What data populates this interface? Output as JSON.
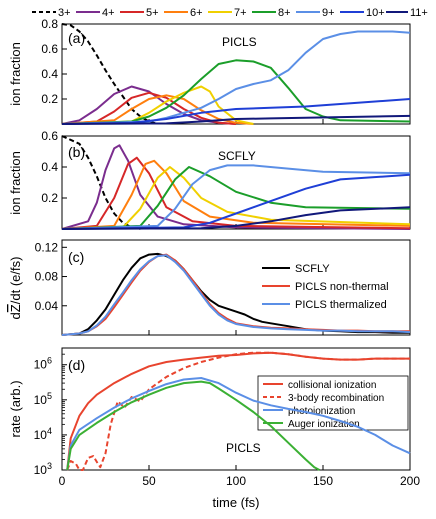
{
  "chart_data": [
    {
      "panel": "(a)",
      "type": "line",
      "annotation": "PICLS",
      "ylabel": "ion fraction",
      "xlim": [
        0,
        200
      ],
      "ylim": [
        0,
        0.8
      ],
      "yticks": [
        "0.2",
        "0.4",
        "0.6",
        "0.8"
      ],
      "series": [
        {
          "name": "3+",
          "color": "#000000",
          "dashed": true,
          "x": [
            0,
            5,
            10,
            15,
            20,
            25,
            30,
            35,
            40,
            45,
            50,
            55
          ],
          "y": [
            0.8,
            0.79,
            0.74,
            0.66,
            0.55,
            0.43,
            0.32,
            0.22,
            0.12,
            0.06,
            0.02,
            0.0
          ]
        },
        {
          "name": "4+",
          "color": "#7b2d8e",
          "x": [
            0,
            10,
            20,
            30,
            40,
            50,
            60,
            70,
            80,
            90,
            100
          ],
          "y": [
            0,
            0.03,
            0.12,
            0.24,
            0.3,
            0.26,
            0.16,
            0.08,
            0.03,
            0.01,
            0
          ]
        },
        {
          "name": "5+",
          "color": "#d62728",
          "x": [
            0,
            20,
            30,
            40,
            50,
            60,
            70,
            80,
            90,
            100
          ],
          "y": [
            0,
            0.02,
            0.1,
            0.21,
            0.25,
            0.21,
            0.12,
            0.05,
            0.01,
            0
          ]
        },
        {
          "name": "6+",
          "color": "#ff7f0e",
          "x": [
            0,
            30,
            40,
            50,
            60,
            70,
            80,
            90,
            100,
            110
          ],
          "y": [
            0,
            0.03,
            0.12,
            0.2,
            0.23,
            0.2,
            0.11,
            0.04,
            0.01,
            0
          ]
        },
        {
          "name": "7+",
          "color": "#f0d000",
          "x": [
            0,
            40,
            50,
            60,
            70,
            80,
            85,
            90,
            100,
            110
          ],
          "y": [
            0,
            0.02,
            0.09,
            0.18,
            0.25,
            0.3,
            0.26,
            0.14,
            0.03,
            0
          ]
        },
        {
          "name": "8+",
          "color": "#1b9e2a",
          "x": [
            0,
            40,
            50,
            60,
            70,
            80,
            90,
            100,
            110,
            120,
            130,
            140,
            150,
            160,
            200
          ],
          "y": [
            0,
            0.02,
            0.06,
            0.13,
            0.23,
            0.36,
            0.48,
            0.51,
            0.5,
            0.45,
            0.29,
            0.12,
            0.06,
            0.03,
            0.02
          ]
        },
        {
          "name": "9+",
          "color": "#5b8fe6",
          "x": [
            0,
            50,
            60,
            70,
            80,
            90,
            100,
            110,
            120,
            130,
            140,
            150,
            160,
            170,
            180,
            190,
            200
          ],
          "y": [
            0,
            0.02,
            0.05,
            0.09,
            0.13,
            0.2,
            0.28,
            0.32,
            0.35,
            0.43,
            0.57,
            0.68,
            0.72,
            0.74,
            0.74,
            0.74,
            0.73
          ]
        },
        {
          "name": "10+",
          "color": "#1f3fd6",
          "x": [
            0,
            40,
            60,
            80,
            100,
            120,
            140,
            160,
            180,
            200
          ],
          "y": [
            0,
            0.01,
            0.04,
            0.09,
            0.12,
            0.13,
            0.14,
            0.16,
            0.18,
            0.2
          ]
        },
        {
          "name": "11+",
          "color": "#11187a",
          "x": [
            0,
            60,
            80,
            100,
            120,
            140,
            160,
            180,
            200
          ],
          "y": [
            0,
            0.005,
            0.02,
            0.04,
            0.045,
            0.05,
            0.055,
            0.06,
            0.065
          ]
        }
      ]
    },
    {
      "panel": "(b)",
      "type": "line",
      "annotation": "SCFLY",
      "ylabel": "ion fraction",
      "xlim": [
        0,
        200
      ],
      "ylim": [
        0,
        0.6
      ],
      "yticks": [
        "0.2",
        "0.4",
        "0.6"
      ],
      "series": [
        {
          "name": "3+",
          "color": "#000000",
          "dashed": true,
          "x": [
            0,
            10,
            15,
            20,
            25,
            30,
            35,
            40,
            45
          ],
          "y": [
            0.6,
            0.55,
            0.46,
            0.34,
            0.2,
            0.1,
            0.04,
            0.01,
            0
          ]
        },
        {
          "name": "4+",
          "color": "#7b2d8e",
          "x": [
            0,
            15,
            20,
            25,
            30,
            33,
            38,
            45,
            55,
            70,
            100,
            200
          ],
          "y": [
            0,
            0.05,
            0.17,
            0.38,
            0.52,
            0.54,
            0.44,
            0.22,
            0.08,
            0.03,
            0.01,
            0
          ]
        },
        {
          "name": "5+",
          "color": "#d62728",
          "x": [
            0,
            20,
            30,
            38,
            43,
            50,
            60,
            75,
            100,
            200
          ],
          "y": [
            0,
            0.02,
            0.2,
            0.42,
            0.46,
            0.36,
            0.14,
            0.05,
            0.02,
            0.005
          ]
        },
        {
          "name": "6+",
          "color": "#ff7f0e",
          "x": [
            0,
            30,
            40,
            48,
            53,
            60,
            70,
            85,
            110,
            200
          ],
          "y": [
            0,
            0.02,
            0.22,
            0.42,
            0.44,
            0.36,
            0.18,
            0.08,
            0.04,
            0.02
          ]
        },
        {
          "name": "7+",
          "color": "#f0d000",
          "x": [
            0,
            35,
            45,
            55,
            62,
            70,
            80,
            95,
            120,
            200
          ],
          "y": [
            0,
            0.01,
            0.13,
            0.33,
            0.4,
            0.33,
            0.2,
            0.11,
            0.06,
            0.03
          ]
        },
        {
          "name": "8+",
          "color": "#1b9e2a",
          "x": [
            0,
            45,
            55,
            65,
            73,
            85,
            100,
            120,
            140,
            200
          ],
          "y": [
            0,
            0.02,
            0.15,
            0.32,
            0.4,
            0.34,
            0.24,
            0.17,
            0.14,
            0.13
          ]
        },
        {
          "name": "9+",
          "color": "#5b8fe6",
          "x": [
            0,
            55,
            65,
            75,
            85,
            95,
            110,
            130,
            150,
            200
          ],
          "y": [
            0,
            0.02,
            0.13,
            0.29,
            0.38,
            0.41,
            0.41,
            0.39,
            0.37,
            0.36
          ]
        },
        {
          "name": "10+",
          "color": "#1f3fd6",
          "x": [
            0,
            70,
            85,
            100,
            120,
            140,
            160,
            200
          ],
          "y": [
            0,
            0.01,
            0.04,
            0.1,
            0.18,
            0.26,
            0.32,
            0.35
          ]
        },
        {
          "name": "11+",
          "color": "#11187a",
          "x": [
            0,
            80,
            100,
            120,
            140,
            160,
            200
          ],
          "y": [
            0,
            0.005,
            0.02,
            0.05,
            0.09,
            0.12,
            0.14
          ]
        }
      ]
    },
    {
      "panel": "(c)",
      "type": "line",
      "ylabel_parts": [
        "d",
        "Z",
        "/dt  (e/fs)"
      ],
      "xlim": [
        0,
        200
      ],
      "ylim": [
        0,
        0.13
      ],
      "yticks": [
        "0.04",
        "0.08",
        "0.12"
      ],
      "series": [
        {
          "name": "SCFLY",
          "color": "#000000",
          "x": [
            0,
            10,
            15,
            20,
            25,
            30,
            35,
            40,
            45,
            50,
            55,
            60,
            65,
            70,
            75,
            80,
            85,
            90,
            95,
            100,
            105,
            110,
            115,
            120,
            130,
            140,
            150,
            160,
            170,
            180,
            190,
            200
          ],
          "y": [
            0,
            0.002,
            0.008,
            0.02,
            0.035,
            0.055,
            0.075,
            0.092,
            0.105,
            0.11,
            0.111,
            0.108,
            0.102,
            0.09,
            0.075,
            0.06,
            0.048,
            0.04,
            0.036,
            0.032,
            0.028,
            0.022,
            0.018,
            0.016,
            0.012,
            0.008,
            0.006,
            0.005,
            0.004,
            0.004,
            0.003,
            0.003
          ]
        },
        {
          "name": "PICLS non-thermal",
          "color": "#e8442e",
          "x": [
            0,
            10,
            15,
            20,
            25,
            30,
            35,
            40,
            45,
            50,
            55,
            60,
            65,
            70,
            75,
            80,
            85,
            90,
            95,
            100,
            110,
            120,
            130,
            140,
            150,
            160,
            170,
            180,
            190,
            200
          ],
          "y": [
            0,
            0.002,
            0.005,
            0.012,
            0.022,
            0.038,
            0.055,
            0.072,
            0.088,
            0.1,
            0.108,
            0.11,
            0.102,
            0.09,
            0.075,
            0.058,
            0.042,
            0.03,
            0.022,
            0.016,
            0.012,
            0.01,
            0.009,
            0.008,
            0.007,
            0.006,
            0.006,
            0.005,
            0.005,
            0.005
          ]
        },
        {
          "name": "PICLS thermalized",
          "color": "#5b8fe6",
          "x": [
            0,
            10,
            15,
            20,
            25,
            30,
            35,
            40,
            45,
            50,
            55,
            60,
            65,
            70,
            75,
            80,
            85,
            90,
            95,
            100,
            110,
            120,
            130,
            140,
            150,
            160,
            170,
            180,
            190,
            200
          ],
          "y": [
            0,
            0.002,
            0.005,
            0.013,
            0.025,
            0.042,
            0.058,
            0.075,
            0.09,
            0.101,
            0.108,
            0.109,
            0.1,
            0.088,
            0.072,
            0.056,
            0.04,
            0.028,
            0.02,
            0.015,
            0.011,
            0.009,
            0.008,
            0.007,
            0.006,
            0.006,
            0.005,
            0.005,
            0.005,
            0.004
          ]
        }
      ]
    },
    {
      "panel": "(d)",
      "type": "line",
      "annotation": "PICLS",
      "ylabel": "rate (arb.)",
      "xlabel": "time (fs)",
      "xlim": [
        0,
        200
      ],
      "ylim": [
        1000,
        3000000
      ],
      "yscale": "log",
      "yticks": [
        {
          "v": 1000,
          "base": "10",
          "exp": "3"
        },
        {
          "v": 10000,
          "base": "10",
          "exp": "4"
        },
        {
          "v": 100000,
          "base": "10",
          "exp": "5"
        },
        {
          "v": 1000000,
          "base": "10",
          "exp": "6"
        }
      ],
      "xticks": [
        "0",
        "50",
        "100",
        "150",
        "200"
      ],
      "legend_position": "right",
      "series": [
        {
          "name": "collisional ionization",
          "color": "#e8442e",
          "x": [
            3,
            5,
            10,
            15,
            20,
            30,
            40,
            50,
            60,
            70,
            80,
            90,
            100,
            110,
            120,
            130,
            140,
            150,
            160,
            170,
            180,
            190,
            200
          ],
          "y": [
            1000,
            8000,
            35000,
            80000,
            140000,
            300000,
            550000,
            900000,
            1200000,
            1400000,
            1600000,
            1800000,
            1900000,
            2100000,
            2200000,
            2000000,
            1700000,
            1500000,
            1400000,
            1400000,
            1500000,
            1500000,
            1500000
          ]
        },
        {
          "name": "3-body recombination",
          "color": "#e8442e",
          "dashed": true,
          "x": [
            3,
            5,
            8,
            10,
            12,
            15,
            18,
            20,
            22,
            25,
            28,
            32,
            36,
            40,
            45,
            50,
            60,
            70,
            80,
            90,
            100,
            110,
            120,
            130,
            140,
            150,
            160,
            170,
            180,
            190,
            200
          ],
          "y": [
            1000,
            1800,
            1500,
            1000,
            1000,
            2200,
            2500,
            1700,
            1200,
            3000,
            20000,
            90000,
            60000,
            120000,
            90000,
            200000,
            450000,
            800000,
            1200000,
            1600000,
            2000000,
            2200000,
            2200000,
            2000000,
            1700000,
            1500000,
            1400000,
            1400000,
            1500000,
            1500000,
            1500000
          ]
        },
        {
          "name": "photoionization",
          "color": "#5b8fe6",
          "x": [
            3,
            5,
            10,
            20,
            30,
            40,
            50,
            60,
            70,
            80,
            90,
            100,
            110,
            120,
            130,
            140,
            150,
            160,
            170,
            180,
            190,
            200
          ],
          "y": [
            1000,
            5000,
            14000,
            30000,
            60000,
            110000,
            180000,
            280000,
            380000,
            420000,
            300000,
            160000,
            95000,
            70000,
            55000,
            45000,
            35000,
            25000,
            17000,
            10000,
            5000,
            3000
          ]
        },
        {
          "name": "Auger ionization",
          "color": "#3bb034",
          "x": [
            3,
            5,
            10,
            20,
            30,
            40,
            50,
            60,
            70,
            80,
            85,
            90,
            100,
            110,
            120,
            130,
            140,
            145,
            148
          ],
          "y": [
            1000,
            4000,
            10000,
            22000,
            45000,
            85000,
            140000,
            220000,
            300000,
            330000,
            300000,
            210000,
            100000,
            45000,
            18000,
            6000,
            2000,
            1200,
            1000
          ]
        }
      ]
    }
  ]
}
